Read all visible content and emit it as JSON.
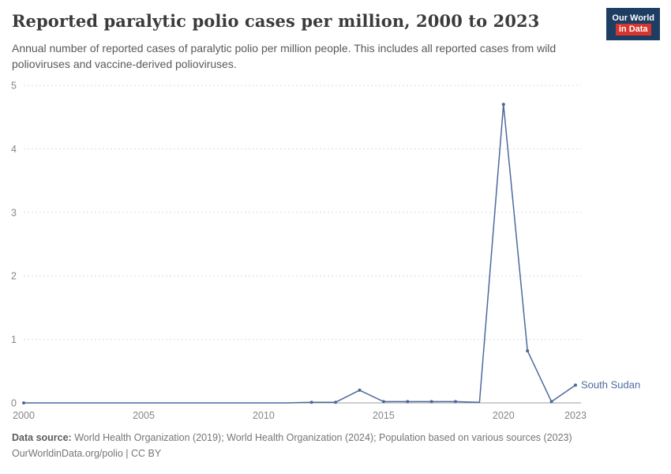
{
  "header": {
    "title": "Reported paralytic polio cases per million, 2000 to 2023",
    "subtitle": "Annual number of reported cases of paralytic polio per million people. This includes all reported cases from wild polioviruses and vaccine-derived polioviruses.",
    "logo": {
      "line1": "Our World",
      "line2": "in Data",
      "bg_color": "#1d3d63",
      "accent_color": "#d7352e"
    }
  },
  "chart_data": {
    "type": "line",
    "title": "Reported paralytic polio cases per million, 2000 to 2023",
    "xlabel": "",
    "ylabel": "",
    "xlim": [
      2000,
      2023
    ],
    "ylim": [
      0,
      5
    ],
    "x_ticks": [
      2000,
      2005,
      2010,
      2015,
      2020,
      2023
    ],
    "y_ticks": [
      0,
      1,
      2,
      3,
      4,
      5
    ],
    "grid": true,
    "grid_color": "#dcdcdc",
    "axis_color": "#9e9e9e",
    "end_label": "South Sudan",
    "series": [
      {
        "name": "South Sudan",
        "color": "#4c6a9c",
        "x": [
          2000,
          2001,
          2002,
          2003,
          2004,
          2005,
          2006,
          2007,
          2008,
          2009,
          2010,
          2011,
          2012,
          2013,
          2014,
          2015,
          2016,
          2017,
          2018,
          2019,
          2020,
          2021,
          2022,
          2023
        ],
        "values": [
          0,
          0,
          0,
          0,
          0,
          0,
          0,
          0,
          0,
          0,
          0,
          0,
          0.01,
          0.01,
          0.2,
          0.02,
          0.02,
          0.02,
          0.02,
          0.01,
          4.7,
          0.82,
          0.02,
          0.28
        ],
        "marker_years": [
          2000,
          2012,
          2013,
          2014,
          2015,
          2016,
          2017,
          2018,
          2020,
          2021,
          2022,
          2023
        ]
      }
    ]
  },
  "footer": {
    "datasource_label": "Data source:",
    "datasource_text": "World Health Organization (2019); World Health Organization (2024); Population based on various sources (2023)",
    "license_line": "OurWorldinData.org/polio | CC BY"
  }
}
